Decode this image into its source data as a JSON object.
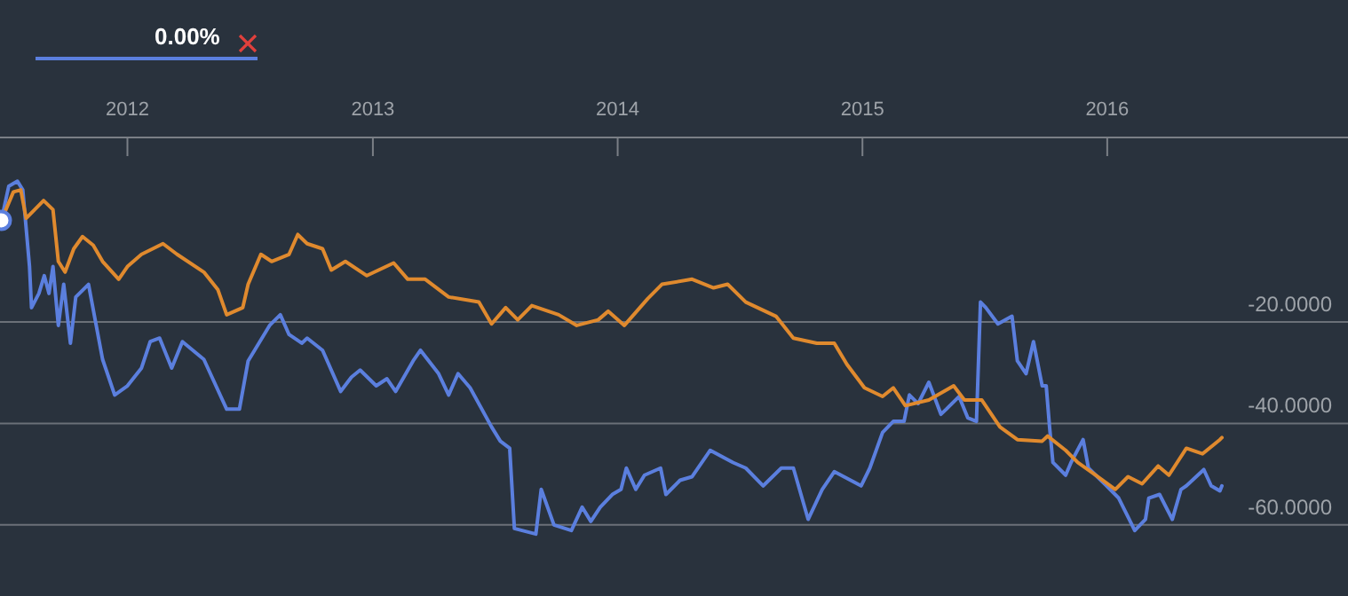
{
  "chart_data": {
    "type": "line",
    "annotations": [
      "0.00%"
    ],
    "xlim": [
      "2011-06-25",
      "2016-12-25"
    ],
    "xticks": [
      "2012",
      "2013",
      "2014",
      "2015",
      "2016"
    ],
    "ylim": [
      -74,
      43.4
    ],
    "yticks": [
      {
        "value": -20,
        "label": "-20.0000"
      },
      {
        "value": -40,
        "label": "-40.0000"
      },
      {
        "value": -60,
        "label": "-60.0000"
      }
    ],
    "grid": "y",
    "line_style": "solid",
    "series": [
      {
        "color": "#5b7fde",
        "x": [
          "2011-06-27",
          "2011-07-08",
          "2011-07-21",
          "2011-07-29",
          "2011-08-08",
          "2011-08-11",
          "2011-08-22",
          "2011-08-30",
          "2011-09-06",
          "2011-09-12",
          "2011-09-20",
          "2011-09-28",
          "2011-10-08",
          "2011-10-16",
          "2011-11-04",
          "2011-11-25",
          "2011-12-13",
          "2012-01-01",
          "2012-01-22",
          "2012-02-04",
          "2012-02-18",
          "2012-03-07",
          "2012-03-23",
          "2012-04-24",
          "2012-05-28",
          "2012-06-16",
          "2012-06-29",
          "2012-07-31",
          "2012-08-16",
          "2012-08-29",
          "2012-09-17",
          "2012-09-25",
          "2012-10-18",
          "2012-11-14",
          "2012-11-30",
          "2012-12-13",
          "2013-01-06",
          "2013-01-22",
          "2013-02-04",
          "2013-03-02",
          "2013-03-13",
          "2013-04-09",
          "2013-04-24",
          "2013-05-08",
          "2013-05-26",
          "2013-06-27",
          "2013-07-10",
          "2013-07-24",
          "2013-07-31",
          "2013-09-01",
          "2013-09-09",
          "2013-09-28",
          "2013-10-24",
          "2013-11-09",
          "2013-11-22",
          "2013-12-06",
          "2013-12-24",
          "2014-01-06",
          "2014-01-14",
          "2014-01-28",
          "2014-02-10",
          "2014-03-06",
          "2014-03-14",
          "2014-04-04",
          "2014-04-22",
          "2014-05-19",
          "2014-06-22",
          "2014-07-11",
          "2014-08-06",
          "2014-09-02",
          "2014-09-20",
          "2014-10-12",
          "2014-11-02",
          "2014-11-20",
          "2014-12-30",
          "2015-01-12",
          "2015-01-31",
          "2015-02-16",
          "2015-03-04",
          "2015-03-12",
          "2015-03-25",
          "2015-04-10",
          "2015-04-28",
          "2015-05-06",
          "2015-05-25",
          "2015-06-07",
          "2015-06-20",
          "2015-06-26",
          "2015-07-04",
          "2015-07-22",
          "2015-08-12",
          "2015-08-20",
          "2015-09-02",
          "2015-09-13",
          "2015-09-26",
          "2015-10-02",
          "2015-10-07",
          "2015-10-12",
          "2015-10-31",
          "2015-11-08",
          "2015-11-26",
          "2015-12-04",
          "2015-12-31",
          "2016-01-18",
          "2016-02-11",
          "2016-02-27",
          "2016-03-03",
          "2016-03-19",
          "2016-04-07",
          "2016-04-20",
          "2016-04-28",
          "2016-05-24",
          "2016-06-04",
          "2016-06-17",
          "2016-06-20"
        ],
        "values": [
          0,
          6.7,
          7.7,
          6.0,
          -9.1,
          -17.2,
          -14.4,
          -10.9,
          -14.4,
          -9.1,
          -20.7,
          -12.6,
          -24.2,
          -15.1,
          -12.6,
          -27.4,
          -34.4,
          -32.6,
          -29.1,
          -23.9,
          -23.2,
          -29.1,
          -23.9,
          -27.4,
          -37.2,
          -37.2,
          -27.7,
          -20.7,
          -18.6,
          -22.5,
          -24.2,
          -23.2,
          -25.6,
          -33.7,
          -30.9,
          -29.5,
          -32.6,
          -31.2,
          -33.7,
          -27.7,
          -25.6,
          -30.2,
          -34.4,
          -30.2,
          -33.0,
          -40.7,
          -43.5,
          -44.9,
          -60.7,
          -61.8,
          -53.0,
          -60.0,
          -61.1,
          -56.5,
          -59.3,
          -56.5,
          -54.0,
          -53.0,
          -48.8,
          -53.0,
          -50.2,
          -48.8,
          -54.0,
          -51.2,
          -50.5,
          -45.3,
          -47.7,
          -48.8,
          -52.3,
          -48.8,
          -48.8,
          -58.9,
          -53.0,
          -49.5,
          -52.3,
          -48.8,
          -41.8,
          -39.6,
          -39.6,
          -34.4,
          -36.1,
          -31.9,
          -38.2,
          -37.2,
          -34.7,
          -38.9,
          -39.6,
          -16.1,
          -17.2,
          -20.4,
          -18.9,
          -27.7,
          -30.2,
          -23.9,
          -32.6,
          -32.6,
          -40.7,
          -47.7,
          -50.2,
          -47.7,
          -43.2,
          -48.8,
          -52.3,
          -54.7,
          -61.1,
          -58.9,
          -54.7,
          -54.0,
          -58.9,
          -53.0,
          -52.3,
          -49.1,
          -52.3,
          -53.3,
          -52.3
        ]
      },
      {
        "color": "#e08a2e",
        "x": [
          "2011-06-27",
          "2011-07-15",
          "2011-07-26",
          "2011-08-03",
          "2011-08-29",
          "2011-09-12",
          "2011-09-20",
          "2011-09-30",
          "2011-10-13",
          "2011-10-26",
          "2011-11-11",
          "2011-11-25",
          "2011-12-19",
          "2012-01-01",
          "2012-01-22",
          "2012-02-23",
          "2012-03-15",
          "2012-04-24",
          "2012-05-15",
          "2012-05-28",
          "2012-06-21",
          "2012-06-29",
          "2012-07-18",
          "2012-08-03",
          "2012-08-29",
          "2012-09-11",
          "2012-09-25",
          "2012-10-18",
          "2012-10-31",
          "2012-11-21",
          "2012-12-23",
          "2013-02-01",
          "2013-02-22",
          "2013-03-20",
          "2013-04-24",
          "2013-06-08",
          "2013-06-27",
          "2013-07-18",
          "2013-08-05",
          "2013-08-26",
          "2013-10-05",
          "2013-11-01",
          "2013-12-03",
          "2013-12-18",
          "2014-01-11",
          "2014-02-15",
          "2014-03-08",
          "2014-04-22",
          "2014-05-24",
          "2014-06-14",
          "2014-07-11",
          "2014-08-25",
          "2014-09-20",
          "2014-10-25",
          "2014-11-20",
          "2014-12-09",
          "2015-01-04",
          "2015-01-31",
          "2015-02-16",
          "2015-03-06",
          "2015-04-10",
          "2015-05-17",
          "2015-06-02",
          "2015-06-28",
          "2015-07-25",
          "2015-08-20",
          "2015-09-26",
          "2015-10-04",
          "2015-10-31",
          "2015-11-18",
          "2015-12-15",
          "2016-01-13",
          "2016-02-01",
          "2016-02-22",
          "2016-03-17",
          "2016-04-02",
          "2016-04-28",
          "2016-05-22",
          "2016-06-17",
          "2016-06-20"
        ],
        "values": [
          0,
          5.6,
          6.0,
          0.4,
          3.9,
          2.1,
          -8.1,
          -10.2,
          -5.6,
          -3.2,
          -4.9,
          -8.1,
          -11.6,
          -9.1,
          -6.7,
          -4.6,
          -6.7,
          -10.2,
          -13.7,
          -18.6,
          -17.2,
          -12.6,
          -6.7,
          -8.1,
          -6.7,
          -2.8,
          -4.6,
          -5.6,
          -9.8,
          -8.1,
          -10.9,
          -8.4,
          -11.6,
          -11.6,
          -15.1,
          -16.1,
          -20.4,
          -17.2,
          -19.6,
          -16.8,
          -18.6,
          -20.7,
          -19.6,
          -17.9,
          -20.7,
          -15.4,
          -12.6,
          -11.6,
          -13.3,
          -12.6,
          -16.1,
          -18.9,
          -23.2,
          -24.2,
          -24.2,
          -28.4,
          -33.0,
          -34.7,
          -33.0,
          -36.5,
          -35.4,
          -32.6,
          -35.4,
          -35.4,
          -40.7,
          -43.2,
          -43.5,
          -42.5,
          -45.3,
          -47.7,
          -50.2,
          -53.0,
          -50.5,
          -51.9,
          -48.4,
          -50.2,
          -44.9,
          -46.0,
          -43.2,
          -42.8
        ]
      }
    ]
  }
}
